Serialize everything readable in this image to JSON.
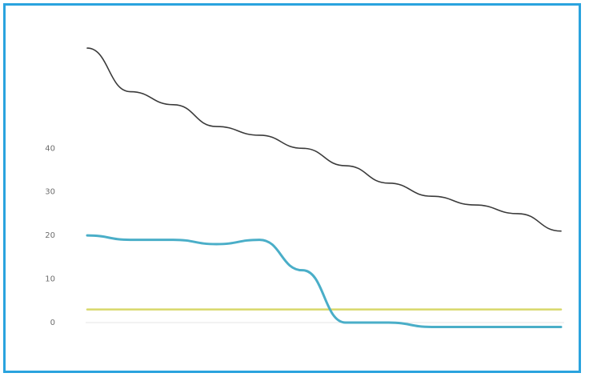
{
  "chart_data": {
    "type": "line",
    "title": "",
    "ylabel": "",
    "xlabel": "",
    "ylim": [
      0,
      70
    ],
    "yticks": [
      0,
      10,
      20,
      30,
      40
    ],
    "categories": [
      "",
      "",
      "",
      "",
      "",
      "",
      "",
      "",
      "",
      "",
      "",
      ""
    ],
    "grid": false,
    "legend_placement": "top-right",
    "series": [
      {
        "name": "",
        "color": "#3a3a3a",
        "values": [
          63,
          53,
          50,
          45,
          43,
          40,
          36,
          32,
          29,
          27,
          25,
          21
        ]
      },
      {
        "name": "",
        "color": "#d8d86a",
        "values": [
          3,
          3,
          3,
          3,
          3,
          3,
          3,
          3,
          3,
          3,
          3,
          3
        ]
      },
      {
        "name": "",
        "color": "#4aaec8",
        "values": [
          20,
          19,
          19,
          18,
          19,
          12,
          0,
          0,
          -1,
          -1,
          -1,
          -1
        ]
      }
    ]
  }
}
